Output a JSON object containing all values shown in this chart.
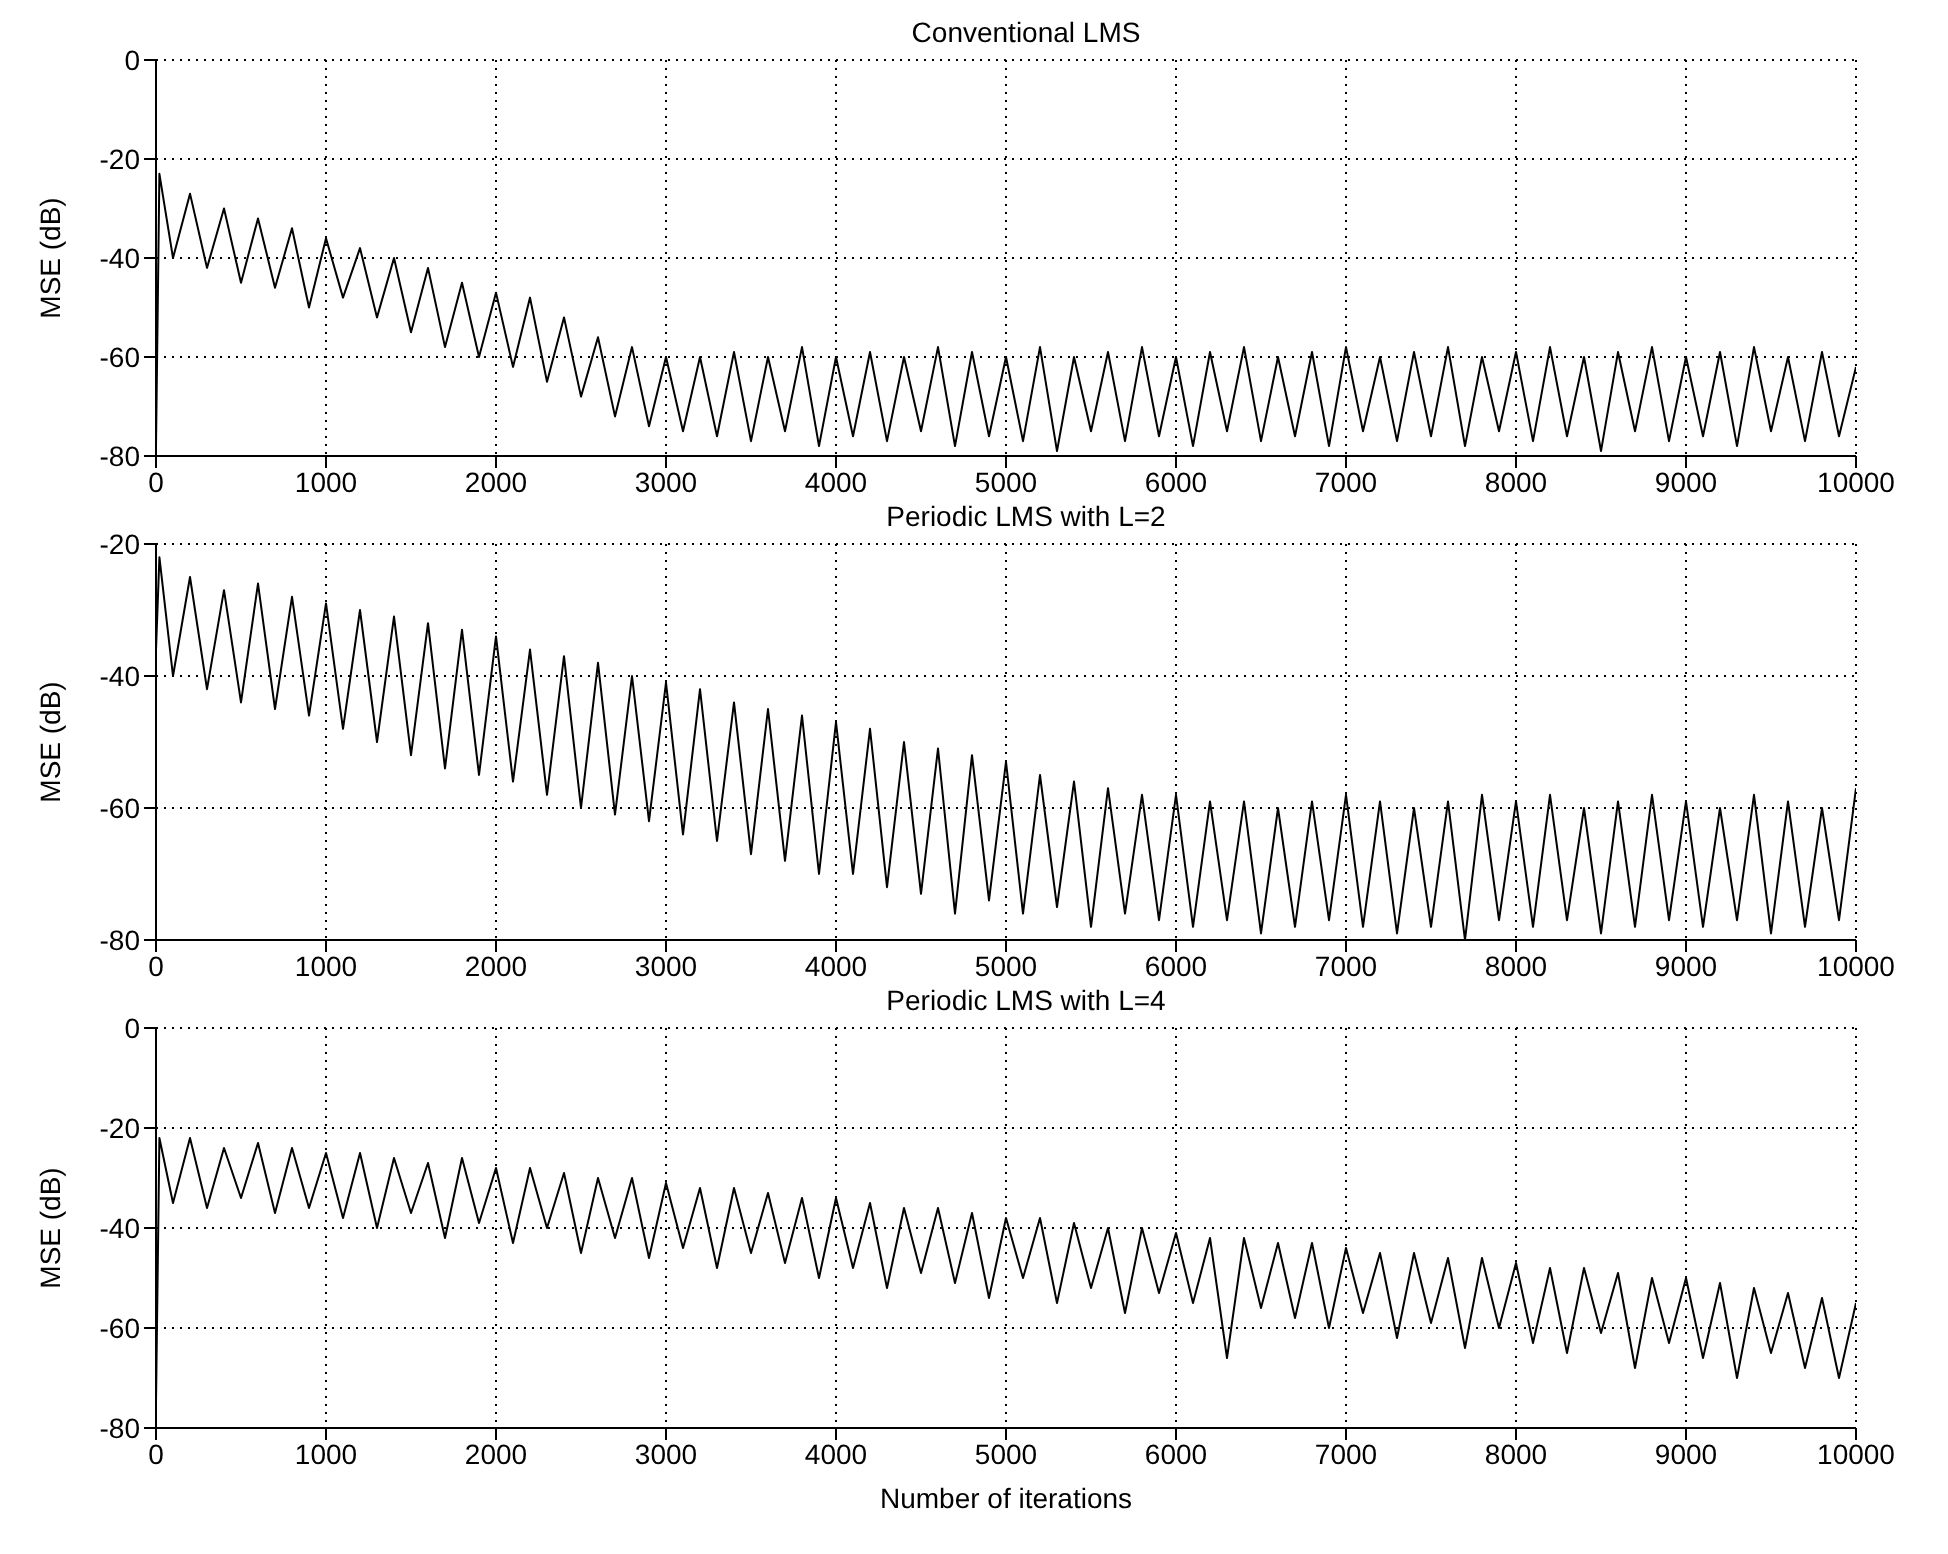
{
  "chart_data": [
    {
      "type": "line",
      "title": "Conventional LMS",
      "ylabel": "MSE (dB)",
      "xlim": [
        0,
        10000
      ],
      "xticks": [
        0,
        1000,
        2000,
        3000,
        4000,
        5000,
        6000,
        7000,
        8000,
        9000,
        10000
      ],
      "ylim": [
        -80,
        0
      ],
      "yticks": [
        -80,
        -60,
        -40,
        -20,
        0
      ],
      "grid": true,
      "line_style": "solid",
      "x": [
        0,
        20,
        100,
        200,
        300,
        400,
        500,
        600,
        700,
        800,
        900,
        1000,
        1100,
        1200,
        1300,
        1400,
        1500,
        1600,
        1700,
        1800,
        1900,
        2000,
        2100,
        2200,
        2300,
        2400,
        2500,
        2600,
        2700,
        2800,
        2900,
        3000,
        3100,
        3200,
        3300,
        3400,
        3500,
        3600,
        3700,
        3800,
        3900,
        4000,
        4100,
        4200,
        4300,
        4400,
        4500,
        4600,
        4700,
        4800,
        4900,
        5000,
        5100,
        5200,
        5300,
        5400,
        5500,
        5600,
        5700,
        5800,
        5900,
        6000,
        6100,
        6200,
        6300,
        6400,
        6500,
        6600,
        6700,
        6800,
        6900,
        7000,
        7100,
        7200,
        7300,
        7400,
        7500,
        7600,
        7700,
        7800,
        7900,
        8000,
        8100,
        8200,
        8300,
        8400,
        8500,
        8600,
        8700,
        8800,
        8900,
        9000,
        9100,
        9200,
        9300,
        9400,
        9500,
        9600,
        9700,
        9800,
        9900,
        10000
      ],
      "series": [
        {
          "color": "#000000",
          "values": [
            -78,
            -23,
            -40,
            -27,
            -42,
            -30,
            -45,
            -32,
            -46,
            -34,
            -50,
            -36,
            -48,
            -38,
            -52,
            -40,
            -55,
            -42,
            -58,
            -45,
            -60,
            -47,
            -62,
            -48,
            -65,
            -52,
            -68,
            -56,
            -72,
            -58,
            -74,
            -60,
            -75,
            -60,
            -76,
            -59,
            -77,
            -60,
            -75,
            -58,
            -78,
            -60,
            -76,
            -59,
            -77,
            -60,
            -75,
            -58,
            -78,
            -59,
            -76,
            -60,
            -77,
            -58,
            -79,
            -60,
            -75,
            -59,
            -77,
            -58,
            -76,
            -60,
            -78,
            -59,
            -75,
            -58,
            -77,
            -60,
            -76,
            -59,
            -78,
            -58,
            -75,
            -60,
            -77,
            -59,
            -76,
            -58,
            -78,
            -60,
            -75,
            -59,
            -77,
            -58,
            -76,
            -60,
            -79,
            -59,
            -75,
            -58,
            -77,
            -60,
            -76,
            -59,
            -78,
            -58,
            -75,
            -60,
            -77,
            -59,
            -76,
            -62
          ]
        }
      ]
    },
    {
      "type": "line",
      "title": "Periodic LMS with L=2",
      "ylabel": "MSE (dB)",
      "xlim": [
        0,
        10000
      ],
      "xticks": [
        0,
        1000,
        2000,
        3000,
        4000,
        5000,
        6000,
        7000,
        8000,
        9000,
        10000
      ],
      "ylim": [
        -80,
        -20
      ],
      "yticks": [
        -80,
        -60,
        -40,
        -20
      ],
      "grid": true,
      "line_style": "solid",
      "x": [
        0,
        20,
        100,
        200,
        300,
        400,
        500,
        600,
        700,
        800,
        900,
        1000,
        1100,
        1200,
        1300,
        1400,
        1500,
        1600,
        1700,
        1800,
        1900,
        2000,
        2100,
        2200,
        2300,
        2400,
        2500,
        2600,
        2700,
        2800,
        2900,
        3000,
        3100,
        3200,
        3300,
        3400,
        3500,
        3600,
        3700,
        3800,
        3900,
        4000,
        4100,
        4200,
        4300,
        4400,
        4500,
        4600,
        4700,
        4800,
        4900,
        5000,
        5100,
        5200,
        5300,
        5400,
        5500,
        5600,
        5700,
        5800,
        5900,
        6000,
        6100,
        6200,
        6300,
        6400,
        6500,
        6600,
        6700,
        6800,
        6900,
        7000,
        7100,
        7200,
        7300,
        7400,
        7500,
        7600,
        7700,
        7800,
        7900,
        8000,
        8100,
        8200,
        8300,
        8400,
        8500,
        8600,
        8700,
        8800,
        8900,
        9000,
        9100,
        9200,
        9300,
        9400,
        9500,
        9600,
        9700,
        9800,
        9900,
        10000
      ],
      "series": [
        {
          "color": "#000000",
          "values": [
            -36,
            -22,
            -40,
            -25,
            -42,
            -27,
            -44,
            -26,
            -45,
            -28,
            -46,
            -29,
            -48,
            -30,
            -50,
            -31,
            -52,
            -32,
            -54,
            -33,
            -55,
            -34,
            -56,
            -36,
            -58,
            -37,
            -60,
            -38,
            -61,
            -40,
            -62,
            -41,
            -64,
            -42,
            -65,
            -44,
            -67,
            -45,
            -68,
            -46,
            -70,
            -47,
            -70,
            -48,
            -72,
            -50,
            -73,
            -51,
            -76,
            -52,
            -74,
            -53,
            -76,
            -55,
            -75,
            -56,
            -78,
            -57,
            -76,
            -58,
            -77,
            -58,
            -78,
            -59,
            -77,
            -59,
            -79,
            -60,
            -78,
            -59,
            -77,
            -58,
            -78,
            -59,
            -79,
            -60,
            -78,
            -59,
            -80,
            -58,
            -77,
            -59,
            -78,
            -58,
            -77,
            -60,
            -79,
            -59,
            -78,
            -58,
            -77,
            -59,
            -78,
            -60,
            -77,
            -58,
            -79,
            -59,
            -78,
            -60,
            -77,
            -57
          ]
        }
      ]
    },
    {
      "type": "line",
      "title": "Periodic LMS with L=4",
      "ylabel": "MSE (dB)",
      "xlabel": "Number of iterations",
      "xlim": [
        0,
        10000
      ],
      "xticks": [
        0,
        1000,
        2000,
        3000,
        4000,
        5000,
        6000,
        7000,
        8000,
        9000,
        10000
      ],
      "ylim": [
        -80,
        0
      ],
      "yticks": [
        -80,
        -60,
        -40,
        -20,
        0
      ],
      "grid": true,
      "line_style": "solid",
      "x": [
        0,
        20,
        100,
        200,
        300,
        400,
        500,
        600,
        700,
        800,
        900,
        1000,
        1100,
        1200,
        1300,
        1400,
        1500,
        1600,
        1700,
        1800,
        1900,
        2000,
        2100,
        2200,
        2300,
        2400,
        2500,
        2600,
        2700,
        2800,
        2900,
        3000,
        3100,
        3200,
        3300,
        3400,
        3500,
        3600,
        3700,
        3800,
        3900,
        4000,
        4100,
        4200,
        4300,
        4400,
        4500,
        4600,
        4700,
        4800,
        4900,
        5000,
        5100,
        5200,
        5300,
        5400,
        5500,
        5600,
        5700,
        5800,
        5900,
        6000,
        6100,
        6200,
        6300,
        6400,
        6500,
        6600,
        6700,
        6800,
        6900,
        7000,
        7100,
        7200,
        7300,
        7400,
        7500,
        7600,
        7700,
        7800,
        7900,
        8000,
        8100,
        8200,
        8300,
        8400,
        8500,
        8600,
        8700,
        8800,
        8900,
        9000,
        9100,
        9200,
        9300,
        9400,
        9500,
        9600,
        9700,
        9800,
        9900,
        10000
      ],
      "series": [
        {
          "color": "#000000",
          "values": [
            -75,
            -22,
            -35,
            -22,
            -36,
            -24,
            -34,
            -23,
            -37,
            -24,
            -36,
            -25,
            -38,
            -25,
            -40,
            -26,
            -37,
            -27,
            -42,
            -26,
            -39,
            -28,
            -43,
            -28,
            -40,
            -29,
            -45,
            -30,
            -42,
            -30,
            -46,
            -31,
            -44,
            -32,
            -48,
            -32,
            -45,
            -33,
            -47,
            -34,
            -50,
            -34,
            -48,
            -35,
            -52,
            -36,
            -49,
            -36,
            -51,
            -37,
            -54,
            -38,
            -50,
            -38,
            -55,
            -39,
            -52,
            -40,
            -57,
            -40,
            -53,
            -41,
            -55,
            -42,
            -66,
            -42,
            -56,
            -43,
            -58,
            -43,
            -60,
            -44,
            -57,
            -45,
            -62,
            -45,
            -59,
            -46,
            -64,
            -46,
            -60,
            -47,
            -63,
            -48,
            -65,
            -48,
            -61,
            -49,
            -68,
            -50,
            -63,
            -50,
            -66,
            -51,
            -70,
            -52,
            -65,
            -53,
            -68,
            -54,
            -70,
            -55
          ]
        }
      ]
    }
  ]
}
